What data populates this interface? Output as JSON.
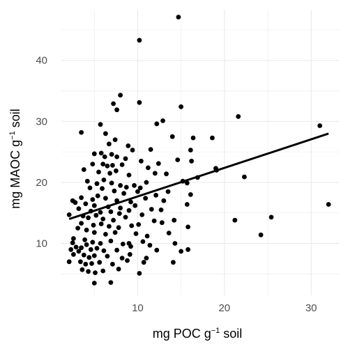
{
  "chart_data": {
    "type": "scatter",
    "xlabel": {
      "pre": "mg POC g",
      "sup": "−1",
      "post": " soil"
    },
    "ylabel": {
      "pre": "mg MAOC g",
      "sup": "−1",
      "post": " soil"
    },
    "xlim": [
      1.2,
      33.2
    ],
    "ylim": [
      1.5,
      48.3
    ],
    "xticks": [
      10,
      20,
      30
    ],
    "yticks": [
      10,
      20,
      30,
      40
    ],
    "grid": true,
    "legend": "none",
    "colors": {
      "points": "#000000",
      "line": "#000000",
      "grid": "#ebebeb",
      "background": "#ffffff"
    },
    "trend_line": {
      "x": [
        2.1,
        32.0
      ],
      "y": [
        14.0,
        28.0
      ]
    },
    "points": [
      [
        10.2,
        43.3
      ],
      [
        14.7,
        47.1
      ],
      [
        8.0,
        34.3
      ],
      [
        7.2,
        32.9
      ],
      [
        10.2,
        33.1
      ],
      [
        7.6,
        31.9
      ],
      [
        15.0,
        32.4
      ],
      [
        12.2,
        29.6
      ],
      [
        12.9,
        30.1
      ],
      [
        5.7,
        29.5
      ],
      [
        6.3,
        28.0
      ],
      [
        3.5,
        28.2
      ],
      [
        21.6,
        30.8
      ],
      [
        31.0,
        29.3
      ],
      [
        32.0,
        16.4
      ],
      [
        14.0,
        27.5
      ],
      [
        16.4,
        27.3
      ],
      [
        18.6,
        27.3
      ],
      [
        11.5,
        25.4
      ],
      [
        16.1,
        25.3
      ],
      [
        7.4,
        27.0
      ],
      [
        6.7,
        26.3
      ],
      [
        8.9,
        26.0
      ],
      [
        9.4,
        25.3
      ],
      [
        5.0,
        24.7
      ],
      [
        5.8,
        24.8
      ],
      [
        6.2,
        24.2
      ],
      [
        7.0,
        24.6
      ],
      [
        7.6,
        24.2
      ],
      [
        8.6,
        23.9
      ],
      [
        10.4,
        23.5
      ],
      [
        12.4,
        23.1
      ],
      [
        14.6,
        23.7
      ],
      [
        16.2,
        23.5
      ],
      [
        4.8,
        23.0
      ],
      [
        6.0,
        23.0
      ],
      [
        6.5,
        22.7
      ],
      [
        7.1,
        22.8
      ],
      [
        8.2,
        22.9
      ],
      [
        11.2,
        22.4
      ],
      [
        3.8,
        22.1
      ],
      [
        5.5,
        21.7
      ],
      [
        6.8,
        21.5
      ],
      [
        7.5,
        21.9
      ],
      [
        9.0,
        21.2
      ],
      [
        12.0,
        21.5
      ],
      [
        13.3,
        21.4
      ],
      [
        16.9,
        20.8
      ],
      [
        19.0,
        22.3
      ],
      [
        19.1,
        22.0
      ],
      [
        22.3,
        20.9
      ],
      [
        4.2,
        20.2
      ],
      [
        5.3,
        19.8
      ],
      [
        6.1,
        20.4
      ],
      [
        7.0,
        19.9
      ],
      [
        8.0,
        19.5
      ],
      [
        8.7,
        19.2
      ],
      [
        9.6,
        19.5
      ],
      [
        10.3,
        19.1
      ],
      [
        11.0,
        20.0
      ],
      [
        4.5,
        19.1
      ],
      [
        5.9,
        19.0
      ],
      [
        7.3,
        18.6
      ],
      [
        8.4,
        18.2
      ],
      [
        10.0,
        18.5
      ],
      [
        13.5,
        18.5
      ],
      [
        15.2,
        20.2
      ],
      [
        15.7,
        19.9
      ],
      [
        3.5,
        17.5
      ],
      [
        4.8,
        17.2
      ],
      [
        5.4,
        17.8
      ],
      [
        6.3,
        17.4
      ],
      [
        7.6,
        17.0
      ],
      [
        9.2,
        16.8
      ],
      [
        10.9,
        17.4
      ],
      [
        12.1,
        17.9
      ],
      [
        13.0,
        17.0
      ],
      [
        2.5,
        17.0
      ],
      [
        2.8,
        16.7
      ],
      [
        4.0,
        16.5
      ],
      [
        5.0,
        16.2
      ],
      [
        6.6,
        16.0
      ],
      [
        8.0,
        15.8
      ],
      [
        9.7,
        16.2
      ],
      [
        11.6,
        15.6
      ],
      [
        15.7,
        16.4
      ],
      [
        16.1,
        18.0
      ],
      [
        3.2,
        15.7
      ],
      [
        4.6,
        15.3
      ],
      [
        5.7,
        15.1
      ],
      [
        6.9,
        15.2
      ],
      [
        7.9,
        14.9
      ],
      [
        9.0,
        15.4
      ],
      [
        10.5,
        14.7
      ],
      [
        12.7,
        15.5
      ],
      [
        2.1,
        14.7
      ],
      [
        3.7,
        14.5
      ],
      [
        4.3,
        14.2
      ],
      [
        5.2,
        14.6
      ],
      [
        6.0,
        14.0
      ],
      [
        7.2,
        13.8
      ],
      [
        8.6,
        14.3
      ],
      [
        11.9,
        13.7
      ],
      [
        3.5,
        13.3
      ],
      [
        4.9,
        13.0
      ],
      [
        5.8,
        13.2
      ],
      [
        6.7,
        12.8
      ],
      [
        7.8,
        12.6
      ],
      [
        9.3,
        12.9
      ],
      [
        10.1,
        13.1
      ],
      [
        12.8,
        13.4
      ],
      [
        14.2,
        13.8
      ],
      [
        15.8,
        12.7
      ],
      [
        21.2,
        13.8
      ],
      [
        25.4,
        14.3
      ],
      [
        3.1,
        12.5
      ],
      [
        4.1,
        12.2
      ],
      [
        5.0,
        11.8
      ],
      [
        6.3,
        11.5
      ],
      [
        7.4,
        11.8
      ],
      [
        9.8,
        11.6
      ],
      [
        11.1,
        11.2
      ],
      [
        13.6,
        11.7
      ],
      [
        24.2,
        11.4
      ],
      [
        2.6,
        10.8
      ],
      [
        3.9,
        10.6
      ],
      [
        4.8,
        10.2
      ],
      [
        5.7,
        10.0
      ],
      [
        6.9,
        10.4
      ],
      [
        8.3,
        9.9
      ],
      [
        9.0,
        10.0
      ],
      [
        10.6,
        10.3
      ],
      [
        11.4,
        9.7
      ],
      [
        14.3,
        10.0
      ],
      [
        2.5,
        10.1
      ],
      [
        2.9,
        9.4
      ],
      [
        3.5,
        9.3
      ],
      [
        4.1,
        9.8
      ],
      [
        4.6,
        9.0
      ],
      [
        5.3,
        9.2
      ],
      [
        6.1,
        8.8
      ],
      [
        7.6,
        8.9
      ],
      [
        9.2,
        9.5
      ],
      [
        12.2,
        8.9
      ],
      [
        15.0,
        8.7
      ],
      [
        15.8,
        9.0
      ],
      [
        2.3,
        9.0
      ],
      [
        2.6,
        8.2
      ],
      [
        3.2,
        8.7
      ],
      [
        3.8,
        8.1
      ],
      [
        4.4,
        7.7
      ],
      [
        5.0,
        8.0
      ],
      [
        6.5,
        7.9
      ],
      [
        8.2,
        7.6
      ],
      [
        9.1,
        8.2
      ],
      [
        11.0,
        7.6
      ],
      [
        2.1,
        7.0
      ],
      [
        3.4,
        7.0
      ],
      [
        4.0,
        6.6
      ],
      [
        4.7,
        6.7
      ],
      [
        5.6,
        6.9
      ],
      [
        7.1,
        6.6
      ],
      [
        8.8,
        7.2
      ],
      [
        10.7,
        6.9
      ],
      [
        14.1,
        6.9
      ],
      [
        3.6,
        5.7
      ],
      [
        4.3,
        5.4
      ],
      [
        5.1,
        5.2
      ],
      [
        6.0,
        5.5
      ],
      [
        7.8,
        5.8
      ],
      [
        10.2,
        5.1
      ],
      [
        5.0,
        3.5
      ],
      [
        6.9,
        3.6
      ]
    ]
  }
}
